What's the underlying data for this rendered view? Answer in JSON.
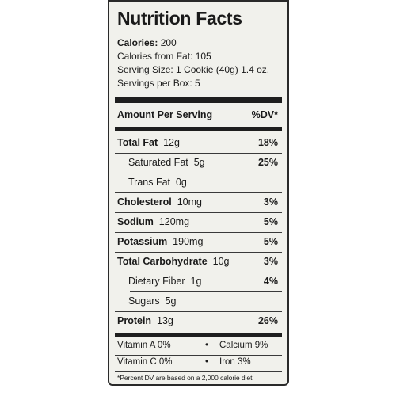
{
  "title": "Nutrition Facts",
  "calories": {
    "label": "Calories:",
    "value": "200"
  },
  "calories_from_fat": "Calories from Fat: 105",
  "serving_size": "Serving Size: 1 Cookie (40g) 1.4 oz.",
  "servings_per_box": "Servings per Box: 5",
  "header": {
    "amount": "Amount Per Serving",
    "dv": "%DV*"
  },
  "nutrients": [
    {
      "name": "Total Fat",
      "amount": "12g",
      "dv": "18%"
    },
    {
      "name": "Saturated Fat",
      "amount": "5g",
      "dv": "25%"
    },
    {
      "name": "Trans Fat",
      "amount": "0g",
      "dv": ""
    },
    {
      "name": "Cholesterol",
      "amount": "10mg",
      "dv": "3%"
    },
    {
      "name": "Sodium",
      "amount": "120mg",
      "dv": "5%"
    },
    {
      "name": "Potassium",
      "amount": "190mg",
      "dv": "5%"
    },
    {
      "name": "Total Carbohydrate",
      "amount": "10g",
      "dv": "3%"
    },
    {
      "name": "Dietary Fiber",
      "amount": "1g",
      "dv": "4%"
    },
    {
      "name": "Sugars",
      "amount": "5g",
      "dv": ""
    },
    {
      "name": "Protein",
      "amount": "13g",
      "dv": "26%"
    }
  ],
  "vitamins": [
    {
      "left": "Vitamin A 0%",
      "right": "Calcium 9%"
    },
    {
      "left": "Vitamin C 0%",
      "right": "Iron 3%"
    }
  ],
  "bullet": "•",
  "footnote": "*Percent DV are based on a 2,000 calorie diet."
}
